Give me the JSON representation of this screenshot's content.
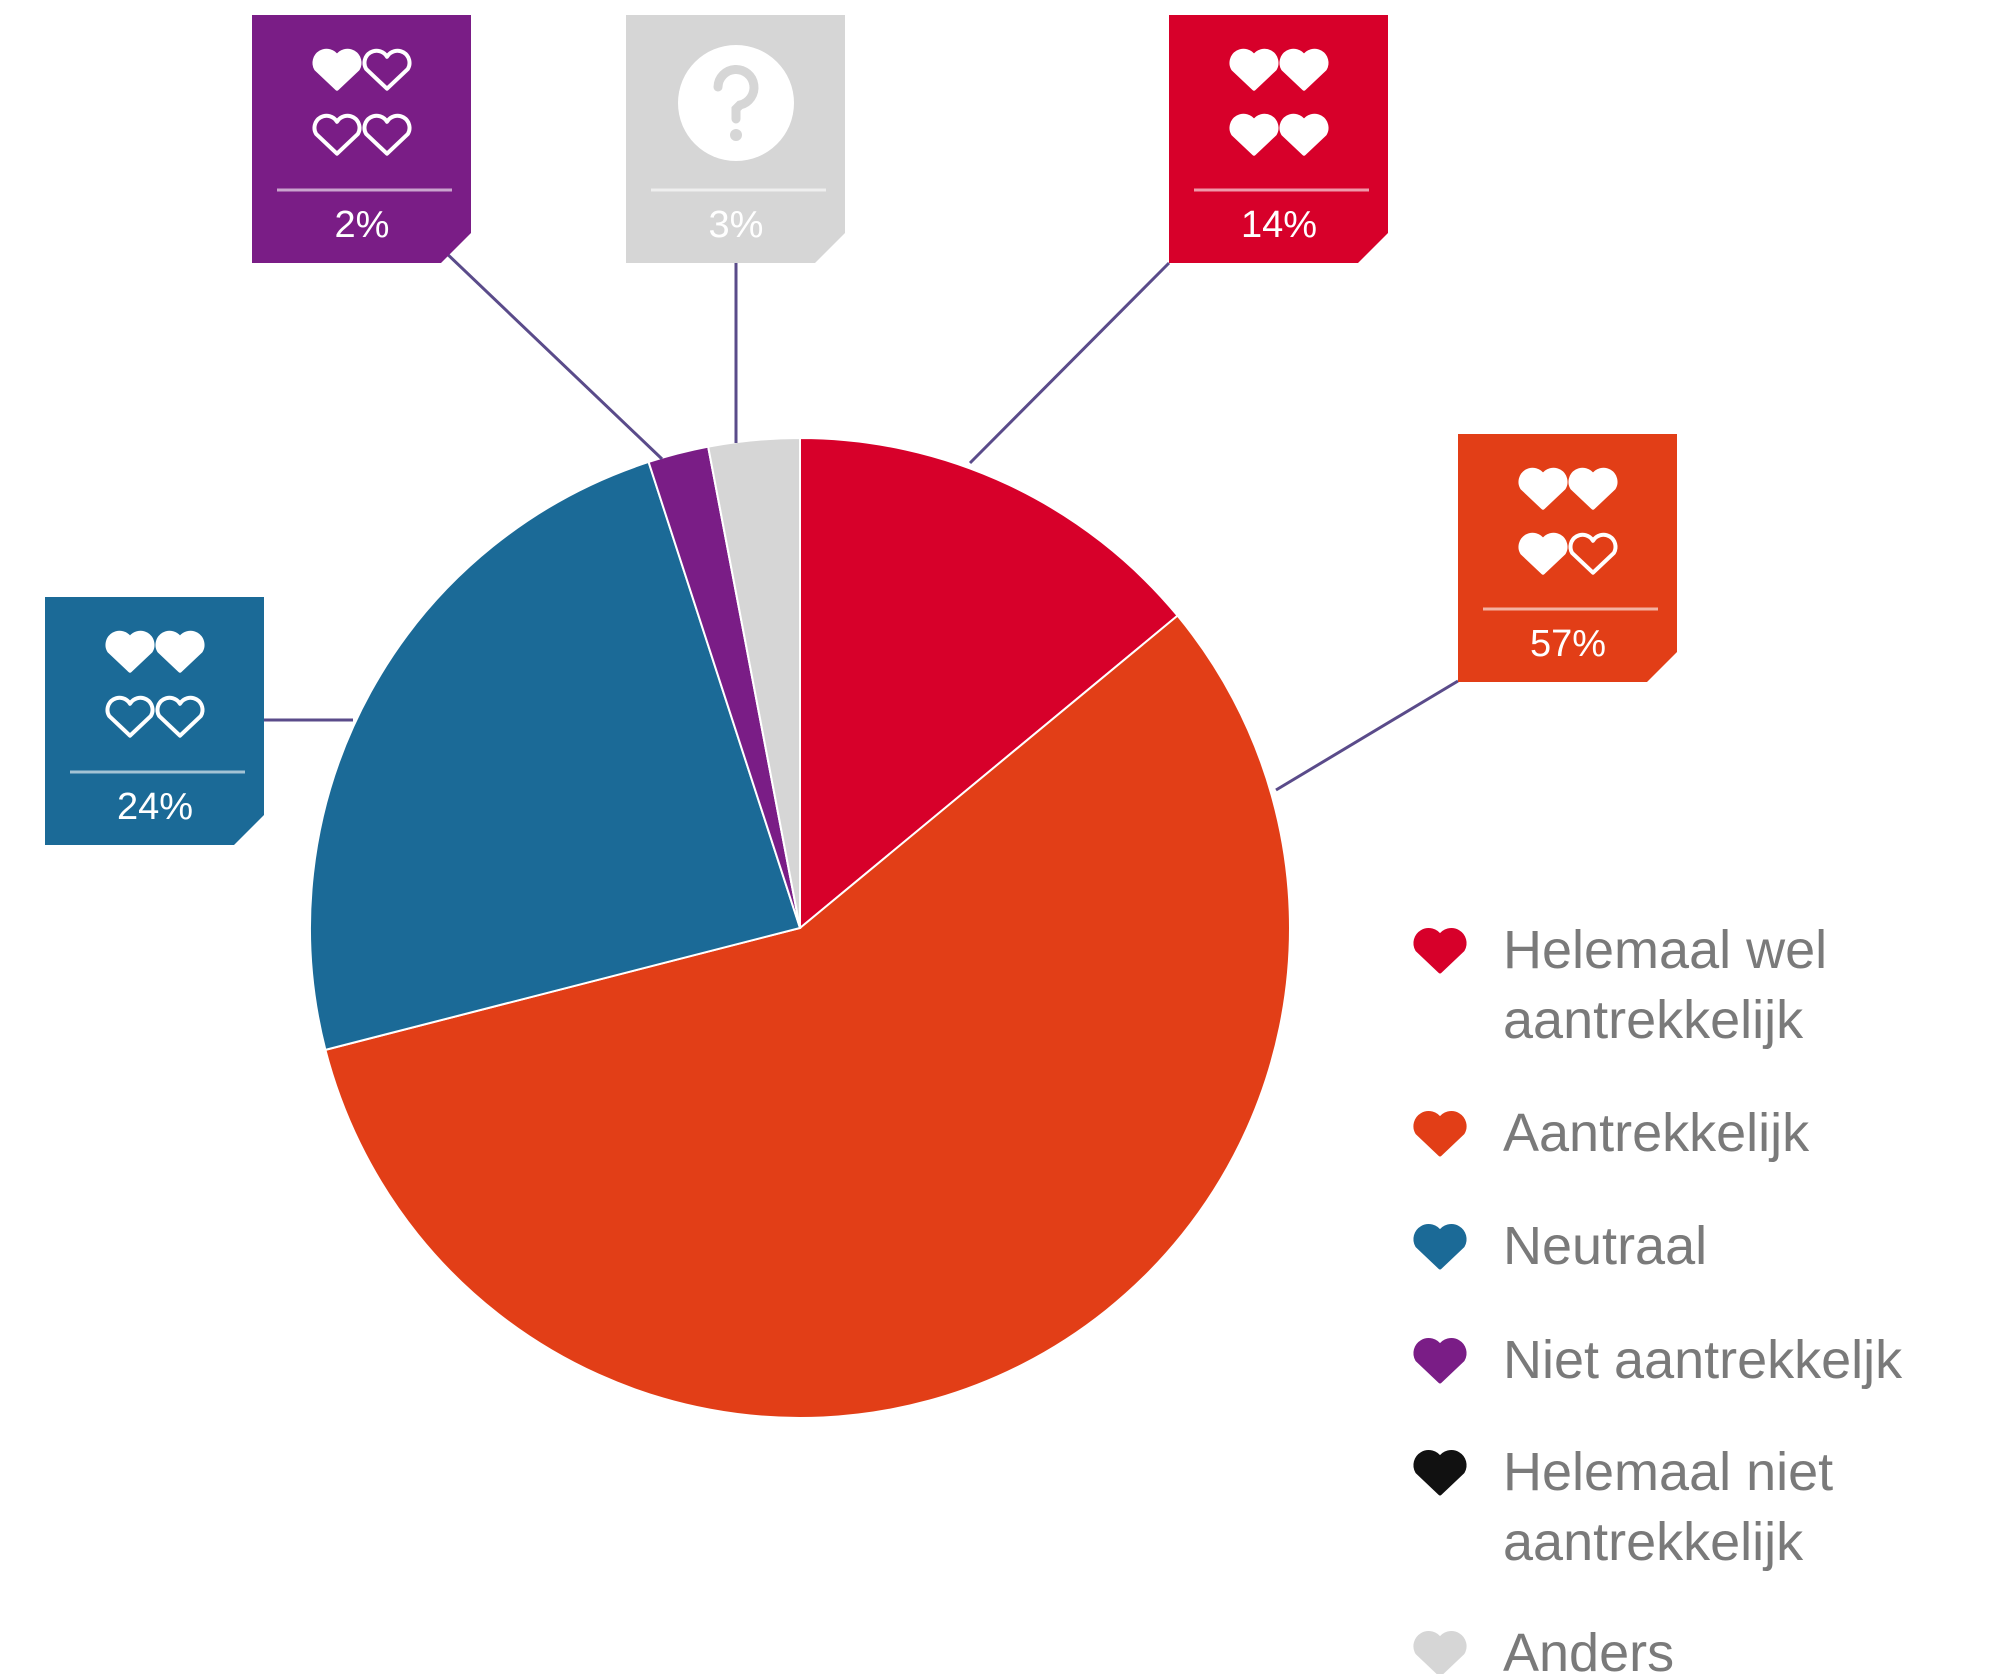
{
  "chart_data": {
    "type": "pie",
    "categories": [
      "Helemaal wel aantrekkelijk",
      "Aantrekkelijk",
      "Neutraal",
      "Niet aantrekkeljk",
      "Helemaal niet aantrekkelijk",
      "Anders"
    ],
    "values": [
      14,
      57,
      24,
      2,
      0,
      3
    ],
    "value_labels": [
      "14%",
      "57%",
      "24%",
      "2%",
      null,
      "3%"
    ],
    "colors": [
      "#d7002a",
      "#e23e17",
      "#1b6a97",
      "#7a1d86",
      "#111111",
      "#d6d6d6"
    ]
  }
}
